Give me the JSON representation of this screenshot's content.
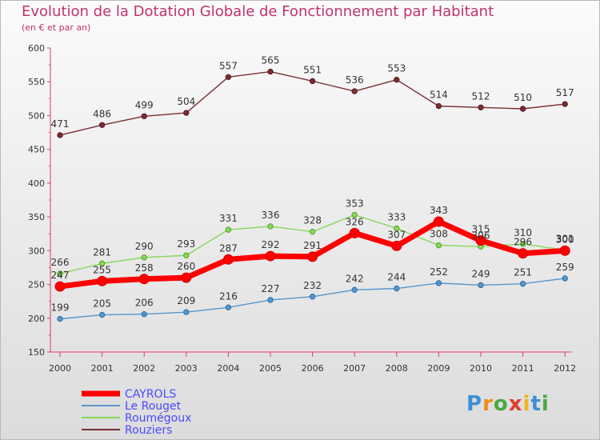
{
  "header": {
    "title": "Evolution de la Dotation Globale de Fonctionnement par Habitant",
    "subtitle": "(en € et par an)"
  },
  "logo": {
    "text": "Proxiti",
    "letters": [
      {
        "ch": "P",
        "color": "#3f8ed8"
      },
      {
        "ch": "r",
        "color": "#f08a1c"
      },
      {
        "ch": "o",
        "color": "#4aa83f"
      },
      {
        "ch": "x",
        "color": "#e23b2e"
      },
      {
        "ch": "i",
        "color": "#f0b41c"
      },
      {
        "ch": "t",
        "color": "#3f8ed8"
      },
      {
        "ch": "i",
        "color": "#4aa83f"
      }
    ]
  },
  "chart_data": {
    "type": "line",
    "title": "Evolution de la Dotation Globale de Fonctionnement par Habitant",
    "subtitle": "(en € et par an)",
    "xlabel": "",
    "ylabel": "",
    "x": [
      "2000",
      "2001",
      "2002",
      "2003",
      "2004",
      "2005",
      "2006",
      "2007",
      "2008",
      "2009",
      "2010",
      "2011",
      "2012"
    ],
    "ylim": [
      150,
      600
    ],
    "yticks": [
      150,
      200,
      250,
      300,
      350,
      400,
      450,
      500,
      550,
      600
    ],
    "grid": false,
    "legend_position": "bottom-left",
    "series": [
      {
        "name": "CAYROLS",
        "color": "#ff0000",
        "values": [
          247,
          255,
          258,
          260,
          287,
          292,
          291,
          326,
          307,
          343,
          315,
          296,
          300
        ]
      },
      {
        "name": "Le Rouget",
        "color": "#5596cc",
        "values": [
          199,
          205,
          206,
          209,
          216,
          227,
          232,
          242,
          244,
          252,
          249,
          251,
          259
        ]
      },
      {
        "name": "Roumégoux",
        "color": "#88d85a",
        "values": [
          266,
          281,
          290,
          293,
          331,
          336,
          328,
          353,
          333,
          308,
          306,
          310,
          301
        ]
      },
      {
        "name": "Rouziers",
        "color": "#7a2e34",
        "values": [
          471,
          486,
          499,
          504,
          557,
          565,
          551,
          536,
          553,
          514,
          512,
          510,
          517
        ]
      }
    ]
  }
}
